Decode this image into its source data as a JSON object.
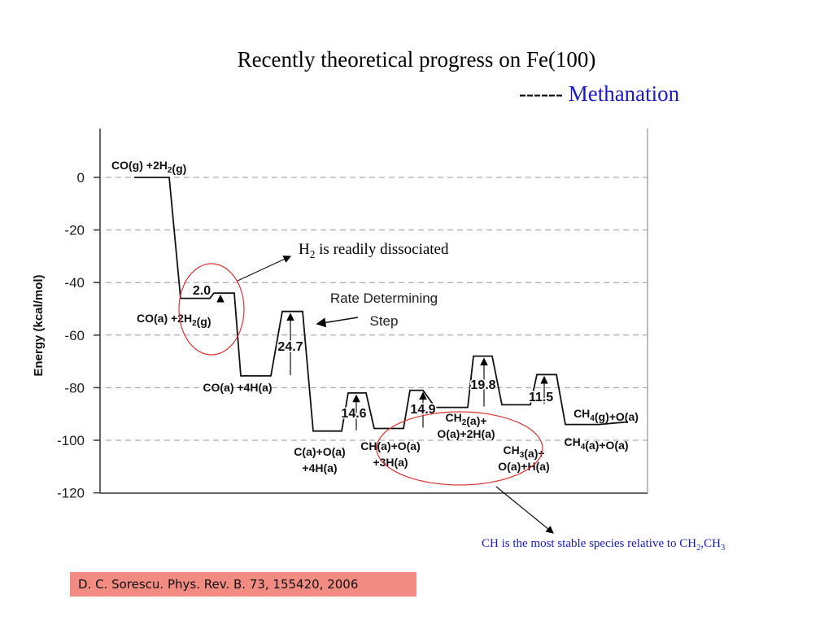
{
  "title": "Recently theoretical progress on Fe(100)",
  "subtitle_prefix": "------",
  "subtitle_highlight": "Methanation",
  "citation": "D. C. Sorescu. Phys. Rev. B. 73, 155420, 2006",
  "annotations": {
    "h2_text": "is readily dissociated",
    "ch_text": "CH is the most stable species relative to CH",
    "rate_step_line1": "Rate Determining",
    "rate_step_line2": "Step"
  },
  "colors": {
    "accent_blue": "#1a1acc",
    "citation_bg": "#f28b82",
    "ellipse": "#d33"
  },
  "chart_data": {
    "type": "energy_profile",
    "ylabel": "Energy (kcal/mol)",
    "ylim": [
      -120,
      0
    ],
    "yticks": [
      0,
      -20,
      -40,
      -60,
      -80,
      -100,
      -120
    ],
    "grid": true,
    "states": [
      {
        "label": "CO(g) +2H2(g)",
        "energy": 0
      },
      {
        "label": "CO(a) +2H2(g)",
        "energy": -46
      },
      {
        "label": "CO(a) +4H(a)",
        "energy": -75.5
      },
      {
        "label": "C(a)+O(a) +4H(a)",
        "energy": -96.5
      },
      {
        "label": "CH(a)+O(a) +3H(a)",
        "energy": -95.5
      },
      {
        "label": "CH2(a)+ O(a)+2H(a)",
        "energy": -87.5
      },
      {
        "label": "CH3(a)+ O(a)+H(a)",
        "energy": -86.5
      },
      {
        "label": "CH4(a)+O(a)",
        "energy": -94
      },
      {
        "label": "CH4(g)+O(a)",
        "energy": -93
      }
    ],
    "barriers": [
      {
        "value": "2.0",
        "energy": -44
      },
      {
        "value": "24.7",
        "energy": -51
      },
      {
        "value": "14.6",
        "energy": -82
      },
      {
        "value": "14.9",
        "energy": -81
      },
      {
        "value": "19.8",
        "energy": -68
      },
      {
        "value": "11.5",
        "energy": -75
      }
    ]
  }
}
